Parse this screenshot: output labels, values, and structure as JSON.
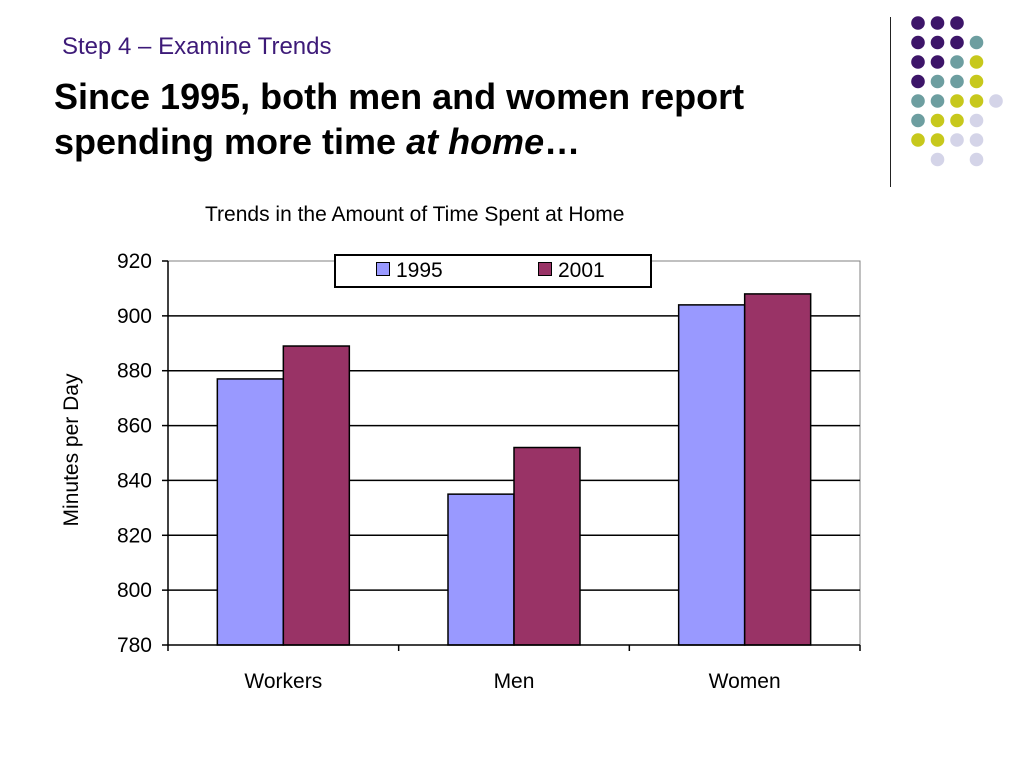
{
  "slide": {
    "step": "Step 4 – Examine Trends",
    "headline_main": "Since 1995, both men and women report spending more time ",
    "headline_emph": "at home",
    "headline_tail": "…"
  },
  "colors": {
    "dot_purple": "#3d1569",
    "dot_teal": "#6d9ea0",
    "dot_yellow": "#c7c81c",
    "dot_lavender": "#d4d4e8"
  },
  "chart_data": {
    "type": "bar",
    "title": "Trends in the Amount of Time Spent at Home",
    "xlabel": "",
    "ylabel": "Minutes per Day",
    "categories": [
      "Workers",
      "Men",
      "Women"
    ],
    "series": [
      {
        "name": "1995",
        "values": [
          877,
          835,
          904
        ],
        "color": "#9999ff"
      },
      {
        "name": "2001",
        "values": [
          889,
          852,
          908
        ],
        "color": "#993366"
      }
    ],
    "ylim": [
      780,
      920
    ],
    "yticks": [
      780,
      800,
      820,
      840,
      860,
      880,
      900,
      920
    ],
    "grid": true,
    "legend": "top-center"
  }
}
